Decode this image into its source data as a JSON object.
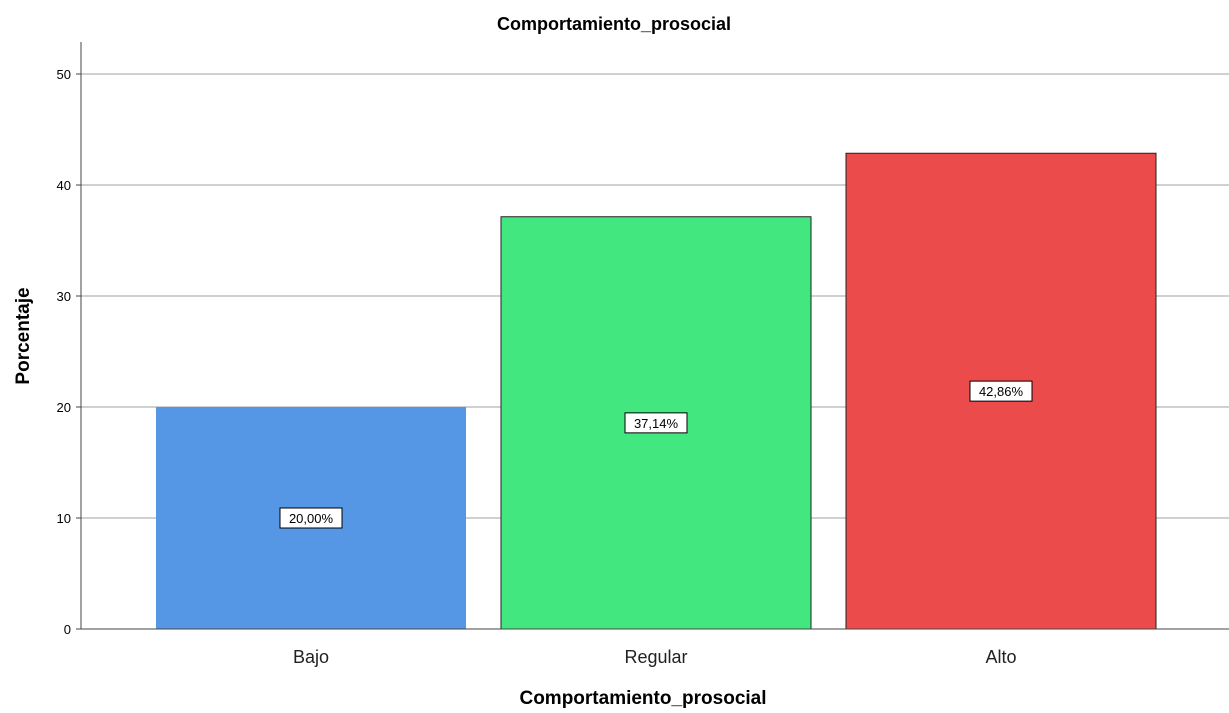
{
  "chart_data": {
    "type": "bar",
    "title": "Comportamiento_prosocial",
    "xlabel": "Comportamiento_prosocial",
    "ylabel": "Porcentaje",
    "categories": [
      "Bajo",
      "Regular",
      "Alto"
    ],
    "values": [
      20.0,
      37.14,
      42.86
    ],
    "data_labels": [
      "20,00%",
      "37,14%",
      "42,86%"
    ],
    "colors": [
      "#5597e4",
      "#43e77f",
      "#ec4b4b"
    ],
    "ylim": [
      0,
      52
    ],
    "yticks": [
      0,
      10,
      20,
      30,
      40,
      50
    ],
    "grid": true,
    "legend": false
  }
}
